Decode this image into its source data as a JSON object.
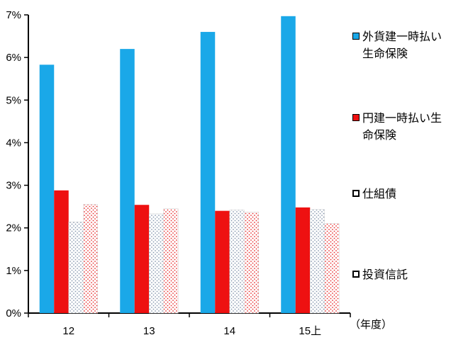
{
  "chart_data": {
    "type": "bar",
    "categories": [
      "12",
      "13",
      "14",
      "15上"
    ],
    "series": [
      {
        "name": "外貨建一時払い生命保険",
        "values": [
          5.83,
          6.2,
          6.6,
          6.97
        ],
        "color": "#1aa8e8",
        "pattern": "solid"
      },
      {
        "name": "円建一時払い生命保険",
        "values": [
          2.88,
          2.54,
          2.4,
          2.48
        ],
        "color": "#ee1111",
        "pattern": "solid"
      },
      {
        "name": "仕組債",
        "values": [
          2.14,
          2.33,
          2.42,
          2.43
        ],
        "color": "#9aa8b8",
        "pattern": "dots-gray"
      },
      {
        "name": "投資信託",
        "values": [
          2.55,
          2.45,
          2.37,
          2.1
        ],
        "color": "#f06060",
        "pattern": "dots-red"
      }
    ],
    "yticks": [
      "0%",
      "1%",
      "2%",
      "3%",
      "4%",
      "5%",
      "6%",
      "7%"
    ],
    "ylim": [
      0,
      7
    ],
    "xlabel": "（年度）",
    "ylabel": "",
    "grid": false,
    "legend_position": "right"
  }
}
